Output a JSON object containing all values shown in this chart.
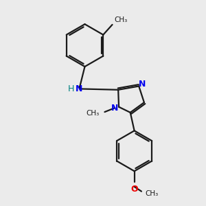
{
  "bg_color": "#ebebeb",
  "bond_color": "#1a1a1a",
  "N_color": "#0000ee",
  "O_color": "#ee0000",
  "H_color": "#008080",
  "line_width": 1.6,
  "figsize": [
    3.0,
    3.0
  ],
  "dpi": 100,
  "xlim": [
    0,
    10
  ],
  "ylim": [
    0,
    10
  ]
}
